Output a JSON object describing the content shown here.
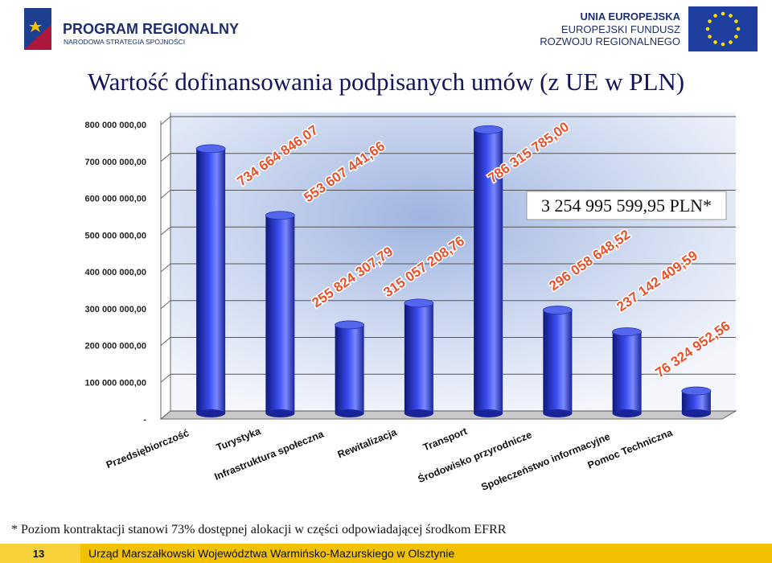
{
  "header": {
    "left_title": "PROGRAM REGIONALNY",
    "left_subtitle": "NARODOWA STRATEGIA SPÓJNOŚCI",
    "right_lines": [
      "UNIA EUROPEJSKA",
      "EUROPEJSKI FUNDUSZ",
      "ROZWOJU REGIONALNEGO"
    ]
  },
  "chart_data": {
    "type": "bar",
    "title": "Wartość dofinansowania podpisanych umów (z UE w PLN)",
    "categories": [
      "Przedsiębiorczość",
      "Turystyka",
      "Infrastruktura społeczna",
      "Rewitalizacja",
      "Transport",
      "Środowisko przyrodnicze",
      "Społeczeństwo informacyjne",
      "Pomoc Techniczna"
    ],
    "values": [
      734664846.07,
      553607441.66,
      255824307.79,
      315057208.76,
      786315785.0,
      296058648.52,
      237142409.59,
      76324952.56
    ],
    "value_labels": [
      "734 664 846,07",
      "553 607 441,66",
      "255 824 307,79",
      "315 057 208,76",
      "786 315 785,00",
      "296 058 648,52",
      "237 142 409,59",
      "76 324 952,56"
    ],
    "color": "#2b3fd6",
    "ylim": [
      0,
      800000000
    ],
    "yticks": [
      {
        "value": 0,
        "label": "-"
      },
      {
        "value": 100000000,
        "label": "100 000 000,00"
      },
      {
        "value": 200000000,
        "label": "200 000 000,00"
      },
      {
        "value": 300000000,
        "label": "300 000 000,00"
      },
      {
        "value": 400000000,
        "label": "400 000 000,00"
      },
      {
        "value": 500000000,
        "label": "500 000 000,00"
      },
      {
        "value": 600000000,
        "label": "600 000 000,00"
      },
      {
        "value": 700000000,
        "label": "700 000 000,00"
      },
      {
        "value": 800000000,
        "label": "800 000 000,00"
      }
    ],
    "grid": true,
    "annotation": "3 254 995 599,95 PLN*",
    "footnote": "* Poziom kontraktacji stanowi 73% dostępnej alokacji w części odpowiadającej środkom EFRR"
  },
  "footer": {
    "page": "13",
    "text": "Urząd Marszałkowski Województwa Warmińsko-Mazurskiego w Olsztynie"
  }
}
